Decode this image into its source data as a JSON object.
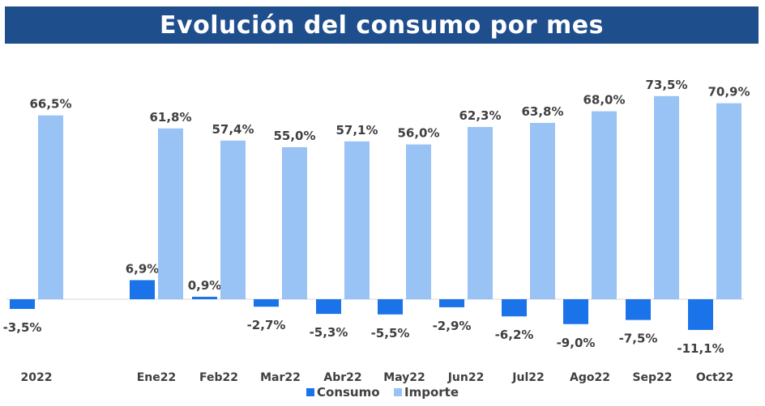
{
  "colors": {
    "title_bg": "#1f4e8c",
    "consumo": "#1a73e8",
    "importe": "#99c2f5",
    "text": "#404040"
  },
  "chart_data": {
    "type": "bar",
    "title": "Evolución del consumo por mes",
    "categories": [
      "2022",
      "Ene22",
      "Feb22",
      "Mar22",
      "Abr22",
      "May22",
      "Jun22",
      "Jul22",
      "Ago22",
      "Sep22",
      "Oct22"
    ],
    "series": [
      {
        "name": "Consumo",
        "values": [
          -3.5,
          6.9,
          0.9,
          -2.7,
          -5.3,
          -5.5,
          -2.9,
          -6.2,
          -9.0,
          -7.5,
          -11.1
        ],
        "labels": [
          "-3,5%",
          "6,9%",
          "0,9%",
          "-2,7%",
          "-5,3%",
          "-5,5%",
          "-2,9%",
          "-6,2%",
          "-9,0%",
          "-7,5%",
          "-11,1%"
        ]
      },
      {
        "name": "Importe",
        "values": [
          66.5,
          61.8,
          57.4,
          55.0,
          57.1,
          56.0,
          62.3,
          63.8,
          68.0,
          73.5,
          70.9
        ],
        "labels": [
          "66,5%",
          "61,8%",
          "57,4%",
          "55,0%",
          "57,1%",
          "56,0%",
          "62,3%",
          "63,8%",
          "68,0%",
          "73,5%",
          "70,9%"
        ]
      }
    ],
    "legend_position": "bottom",
    "grid": false
  }
}
